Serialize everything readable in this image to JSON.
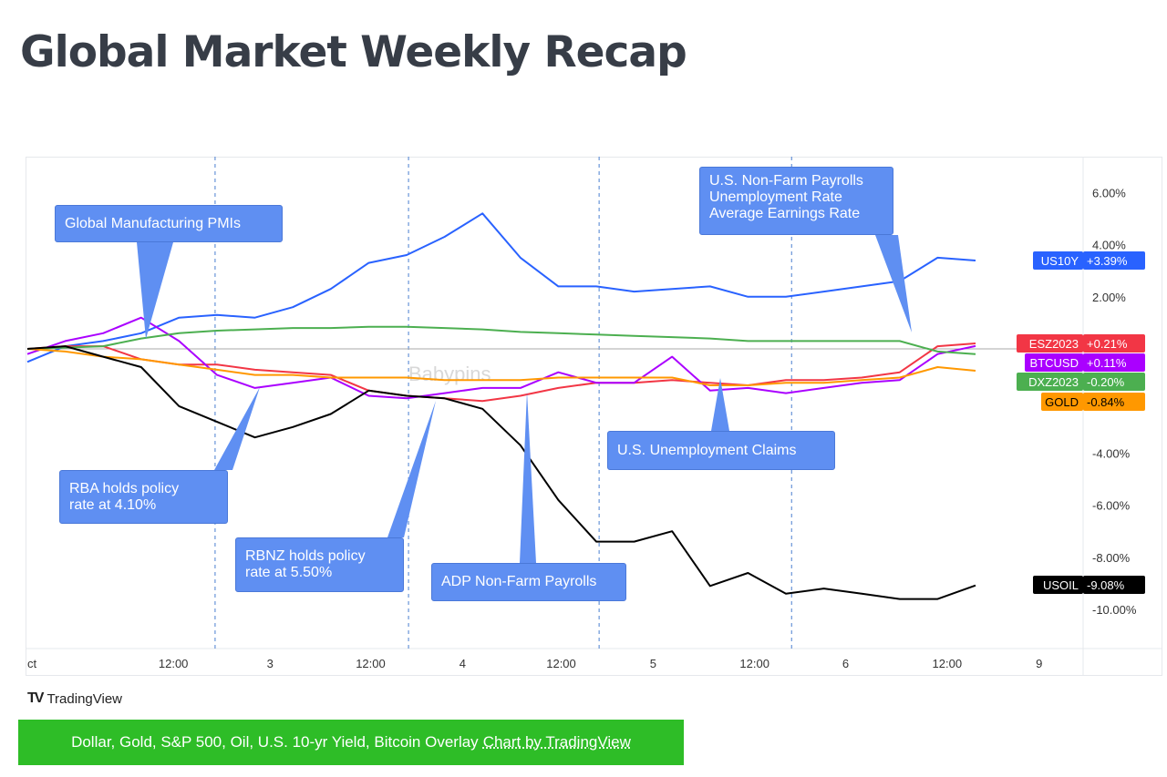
{
  "page_title": "Global Market Weekly Recap",
  "chart_data": {
    "type": "line",
    "title": "",
    "xlabel": "",
    "ylabel": "",
    "x_ticks": [
      {
        "x": 0,
        "label": "ct"
      },
      {
        "x": 15.4,
        "label": "12:00"
      },
      {
        "x": 25.6,
        "label": "3"
      },
      {
        "x": 36.2,
        "label": "12:00"
      },
      {
        "x": 45.9,
        "label": "4"
      },
      {
        "x": 56.3,
        "label": "12:00"
      },
      {
        "x": 66,
        "label": "5"
      },
      {
        "x": 76.7,
        "label": "12:00"
      },
      {
        "x": 86.3,
        "label": "6"
      },
      {
        "x": 97,
        "label": "12:00"
      },
      {
        "x": 106.7,
        "label": "9"
      }
    ],
    "x_range": [
      0,
      111
    ],
    "session_breaks": [
      19.8,
      40.2,
      60.3,
      80.6
    ],
    "y_axis_position": "right",
    "y_unit": "%",
    "ylim": [
      -11,
      7
    ],
    "y_ticks": [
      "6.00%",
      "4.00%",
      "2.00%",
      "-4.00%",
      "-6.00%",
      "-8.00%",
      "-10.00%"
    ],
    "y_tick_values": [
      6,
      4,
      2,
      -4,
      -6,
      -8,
      -10
    ],
    "zero_line": true,
    "grid": false,
    "x": [
      0,
      4,
      8,
      12,
      16,
      20,
      24,
      28,
      32,
      36,
      40,
      44,
      48,
      52,
      56,
      60,
      64,
      68,
      72,
      76,
      80,
      84,
      88,
      92,
      96,
      100
    ],
    "series": [
      {
        "name": "US10Y",
        "last": "+3.39%",
        "color": "#2962ff",
        "values": [
          -0.5,
          0.1,
          0.3,
          0.6,
          1.2,
          1.3,
          1.2,
          1.6,
          2.3,
          3.3,
          3.6,
          4.3,
          5.2,
          3.5,
          2.4,
          2.4,
          2.2,
          2.3,
          2.4,
          2.0,
          2.0,
          2.2,
          2.4,
          2.6,
          3.5,
          3.39
        ]
      },
      {
        "name": "ESZ2023",
        "last": "+0.21%",
        "color": "#f23645",
        "values": [
          0,
          0.1,
          0.1,
          -0.4,
          -0.6,
          -0.6,
          -0.8,
          -0.9,
          -1.0,
          -1.6,
          -1.8,
          -1.9,
          -2.0,
          -1.8,
          -1.5,
          -1.3,
          -1.3,
          -1.2,
          -1.3,
          -1.4,
          -1.2,
          -1.2,
          -1.1,
          -0.9,
          0.1,
          0.21
        ]
      },
      {
        "name": "BTCUSD",
        "last": "+0.11%",
        "color": "#aa00ff",
        "values": [
          -0.2,
          0.3,
          0.6,
          1.2,
          0.3,
          -1.0,
          -1.5,
          -1.3,
          -1.1,
          -1.8,
          -1.9,
          -1.7,
          -1.5,
          -1.5,
          -0.9,
          -1.3,
          -1.3,
          -0.3,
          -1.6,
          -1.5,
          -1.7,
          -1.5,
          -1.3,
          -1.2,
          -0.2,
          0.11
        ]
      },
      {
        "name": "DXZ2023",
        "last": "-0.20%",
        "color": "#4caf50",
        "values": [
          0,
          0.05,
          0.1,
          0.4,
          0.6,
          0.7,
          0.75,
          0.8,
          0.8,
          0.85,
          0.85,
          0.8,
          0.75,
          0.65,
          0.6,
          0.55,
          0.5,
          0.45,
          0.4,
          0.3,
          0.3,
          0.3,
          0.3,
          0.3,
          -0.1,
          -0.2
        ]
      },
      {
        "name": "GOLD",
        "last": "-0.84%",
        "color": "#ff9800",
        "values": [
          0,
          -0.1,
          -0.3,
          -0.4,
          -0.6,
          -0.8,
          -1.0,
          -1.0,
          -1.1,
          -1.1,
          -1.1,
          -1.2,
          -1.2,
          -1.2,
          -1.1,
          -1.1,
          -1.1,
          -1.1,
          -1.4,
          -1.4,
          -1.3,
          -1.3,
          -1.2,
          -1.1,
          -0.7,
          -0.84
        ]
      },
      {
        "name": "USOIL",
        "last": "-9.08%",
        "color": "#000000",
        "values": [
          0,
          0.1,
          -0.3,
          -0.7,
          -2.2,
          -2.8,
          -3.4,
          -3.0,
          -2.5,
          -1.6,
          -1.8,
          -1.9,
          -2.3,
          -3.7,
          -5.8,
          -7.4,
          -7.4,
          -7.0,
          -9.1,
          -8.6,
          -9.4,
          -9.2,
          -9.4,
          -9.6,
          -9.6,
          -9.08
        ]
      }
    ],
    "annotations": [
      "Global Manufacturing PMIs",
      "U.S. Non-Farm Payrolls\nUnemployment Rate\nAverage Earnings Rate",
      "RBA holds policy\nrate at 4.10%",
      "RBNZ holds policy\nrate at 5.50%",
      "ADP Non-Farm Payrolls",
      "U.S. Unemployment Claims"
    ],
    "watermark": "Babypins"
  },
  "footer": {
    "logo_text": "TradingView",
    "banner_text": "Dollar, Gold, S&P 500, Oil, U.S. 10-yr Yield, Bitcoin Overlay",
    "banner_link": "Chart by TradingView"
  },
  "colors": {
    "callout": "#5f8ff2",
    "banner": "#2ebd27"
  }
}
